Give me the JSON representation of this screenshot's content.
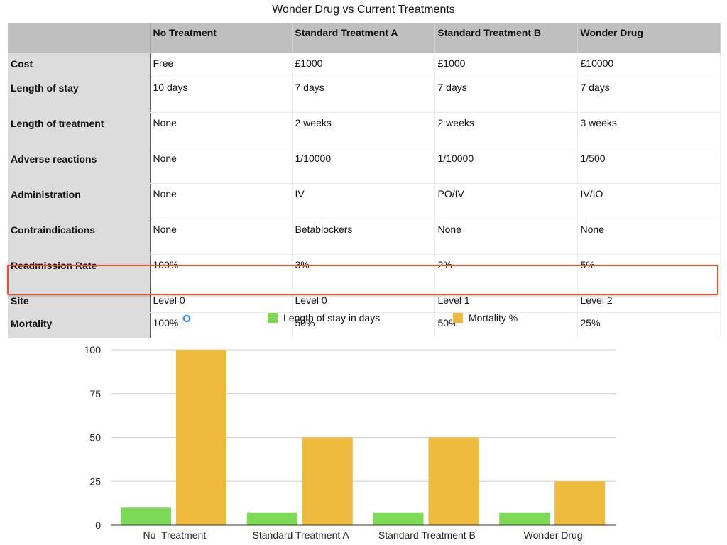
{
  "title": "Wonder Drug vs Current Treatments",
  "table": {
    "columns": [
      "No  Treatment",
      "Standard Treatment A",
      "Standard Treatment B",
      "Wonder Drug"
    ],
    "rows": [
      {
        "label": "Cost",
        "cells": [
          "Free",
          "£1000",
          "£1000",
          "£10000"
        ]
      },
      {
        "label": "Length of stay",
        "cells": [
          "10 days",
          "7 days",
          "7 days",
          "7 days"
        ]
      },
      {
        "label": "Length of treatment",
        "cells": [
          "None",
          "2 weeks",
          "2 weeks",
          "3 weeks"
        ]
      },
      {
        "label": "Adverse reactions",
        "cells": [
          "None",
          "1/10000",
          "1/10000",
          "1/500"
        ]
      },
      {
        "label": "Administration",
        "cells": [
          "None",
          "IV",
          "PO/IV",
          "IV/IO"
        ]
      },
      {
        "label": "Contraindications",
        "cells": [
          "None",
          "Betablockers",
          "None",
          "None"
        ]
      },
      {
        "label": "Readmission Rate",
        "cells": [
          "100%",
          "3%",
          "2%",
          "5%"
        ]
      },
      {
        "label": "Site",
        "cells": [
          "Level 0",
          "Level 0",
          "Level 1",
          "Level 2"
        ]
      },
      {
        "label": "Mortality",
        "cells": [
          "100%",
          "50%",
          "50%",
          "25%"
        ]
      }
    ]
  },
  "legend": {
    "sync_icon": "sync-icon",
    "items": [
      {
        "label": "Length of stay in days",
        "color": "#7ed957"
      },
      {
        "label": "Mortality %",
        "color": "#efbb3f"
      }
    ]
  },
  "chart_data": {
    "type": "bar",
    "categories": [
      "No  Treatment",
      "Standard Treatment A",
      "Standard Treatment B",
      "Wonder Drug"
    ],
    "series": [
      {
        "name": "Length of stay in days",
        "values": [
          10,
          7,
          7,
          7
        ],
        "color": "#7ed957"
      },
      {
        "name": "Mortality %",
        "values": [
          100,
          50,
          50,
          25
        ],
        "color": "#efbb3f"
      }
    ],
    "y_ticks": [
      "0",
      "25",
      "50",
      "75",
      "100"
    ],
    "ylim": [
      0,
      100
    ],
    "title": "",
    "xlabel": "",
    "ylabel": "",
    "grid": true,
    "legend_position": "top"
  }
}
